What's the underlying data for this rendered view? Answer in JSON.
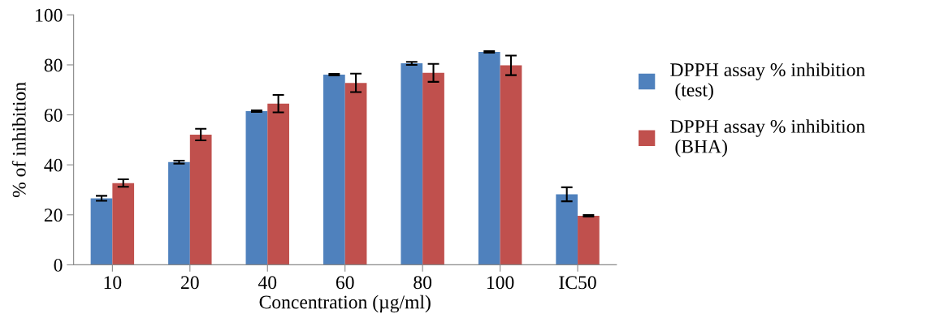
{
  "chart_data": {
    "type": "bar",
    "xlabel": "Concentration (µg/ml)",
    "ylabel": "% of inhibition",
    "categories": [
      "10",
      "20",
      "40",
      "60",
      "80",
      "100",
      "IC50"
    ],
    "series": [
      {
        "name": "DPPH assay % inhibition\n (test)",
        "color": "#4f81bd",
        "values": [
          26.6,
          41.1,
          61.5,
          76.1,
          80.6,
          85.2,
          28.2
        ],
        "errors": [
          1.0,
          0.6,
          0.3,
          0.3,
          0.6,
          0.3,
          2.8
        ]
      },
      {
        "name": "DPPH assay % inhibition\n (BHA)",
        "color": "#c0504d",
        "values": [
          32.7,
          52.1,
          64.5,
          72.8,
          76.8,
          79.8,
          19.6
        ],
        "errors": [
          1.5,
          2.3,
          3.5,
          3.7,
          3.6,
          3.9,
          0.3
        ]
      }
    ],
    "ylim": [
      0,
      100
    ],
    "yticks": [
      0,
      20,
      40,
      60,
      80,
      100
    ],
    "grid": false,
    "legend": "right"
  }
}
